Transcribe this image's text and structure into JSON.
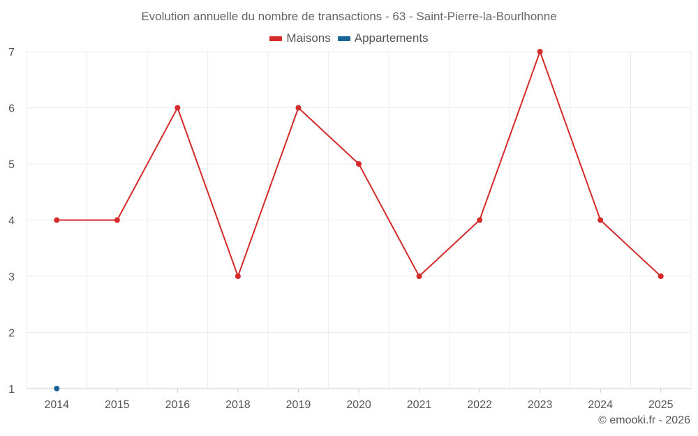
{
  "chart_data": {
    "type": "line",
    "title": "Evolution annuelle du nombre de transactions - 63 - Saint-Pierre-la-Bourlhonne",
    "categories": [
      "2014",
      "2015",
      "2016",
      "2018",
      "2019",
      "2020",
      "2021",
      "2022",
      "2023",
      "2024",
      "2025"
    ],
    "ylim": [
      1,
      7
    ],
    "yticks": [
      "1",
      "2",
      "3",
      "4",
      "5",
      "6",
      "7"
    ],
    "grid": true,
    "legend_position": "top-center",
    "series": [
      {
        "name": "Maisons",
        "color": "#d42a2a",
        "values": [
          4,
          4,
          6,
          3,
          6,
          5,
          3,
          4,
          7,
          4,
          3
        ]
      },
      {
        "name": "Appartements",
        "color": "#1a6496",
        "values": [
          1,
          null,
          null,
          null,
          null,
          null,
          null,
          null,
          null,
          null,
          null
        ]
      }
    ]
  },
  "footer": "© emooki.fr - 2026"
}
